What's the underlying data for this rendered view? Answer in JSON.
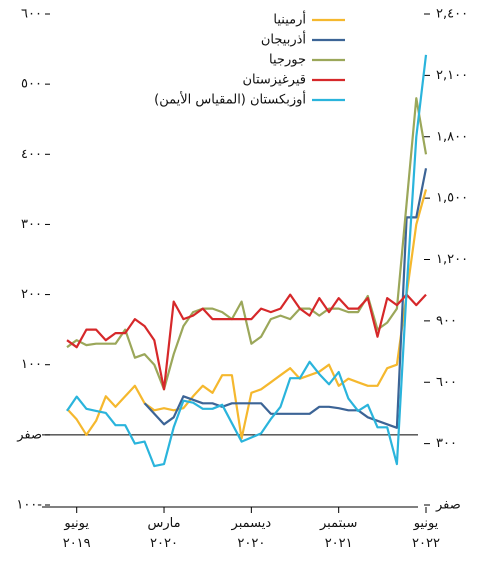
{
  "chart_data": {
    "type": "line",
    "categories": [
      null,
      "يونيو ٢٠١٩",
      null,
      null,
      null,
      null,
      null,
      null,
      null,
      null,
      "مارس ٢٠٢٠",
      null,
      null,
      null,
      null,
      null,
      null,
      null,
      null,
      "ديسمبر ٢٠٢٠",
      null,
      null,
      null,
      null,
      null,
      null,
      null,
      null,
      "سبتمبر ٢٠٢١",
      null,
      null,
      null,
      null,
      null,
      null,
      null,
      null,
      "يونيو ٢٠٢٢"
    ],
    "ylim": [
      -100,
      600
    ],
    "yticks": [
      {
        "value": -100,
        "label": "١٠٠-"
      },
      {
        "value": 0,
        "label": "صفر"
      },
      {
        "value": 100,
        "label": "١٠٠"
      },
      {
        "value": 200,
        "label": "٢٠٠"
      },
      {
        "value": 300,
        "label": "٣٠٠"
      },
      {
        "value": 400,
        "label": "٤٠٠"
      },
      {
        "value": 500,
        "label": "٥٠٠"
      },
      {
        "value": 600,
        "label": "٦٠٠"
      }
    ],
    "y2lim": [
      0,
      2400
    ],
    "y2ticks": [
      {
        "value": 0,
        "label": "صفر"
      },
      {
        "value": 300,
        "label": "٣٠٠"
      },
      {
        "value": 600,
        "label": "٦٠٠"
      },
      {
        "value": 900,
        "label": "٩٠٠"
      },
      {
        "value": 1200,
        "label": "١,٢٠٠"
      },
      {
        "value": 1500,
        "label": "١,٥٠٠"
      },
      {
        "value": 1800,
        "label": "١,٨٠٠"
      },
      {
        "value": 2100,
        "label": "٢,١٠٠"
      },
      {
        "value": 2400,
        "label": "٢,٤٠٠"
      }
    ],
    "series": [
      {
        "name": "أرمينيا",
        "color": "#f5b82e",
        "values": [
          37,
          22,
          0,
          20,
          55,
          40,
          55,
          70,
          45,
          35,
          38,
          35,
          38,
          55,
          70,
          60,
          85,
          85,
          -5,
          60,
          65,
          75,
          85,
          95,
          80,
          85,
          90,
          100,
          70,
          80,
          75,
          70,
          70,
          95,
          100,
          200,
          300,
          350
        ]
      },
      {
        "name": "أذربيجان",
        "color": "#3c6496",
        "values": [
          null,
          null,
          null,
          null,
          null,
          null,
          null,
          null,
          45,
          30,
          15,
          25,
          55,
          50,
          45,
          45,
          40,
          45,
          45,
          45,
          45,
          30,
          30,
          30,
          30,
          30,
          40,
          40,
          38,
          35,
          35,
          25,
          20,
          15,
          10,
          310,
          310,
          380
        ]
      },
      {
        "name": "جورجيا",
        "color": "#9ba75a",
        "values": [
          125,
          135,
          128,
          130,
          130,
          130,
          150,
          110,
          115,
          100,
          65,
          115,
          155,
          175,
          180,
          180,
          175,
          165,
          190,
          130,
          140,
          165,
          170,
          165,
          180,
          180,
          170,
          180,
          180,
          175,
          175,
          198,
          150,
          160,
          180,
          330,
          480,
          400
        ]
      },
      {
        "name": "قيرغيزستان",
        "color": "#d6282a",
        "values": [
          135,
          125,
          150,
          150,
          135,
          145,
          145,
          165,
          155,
          135,
          65,
          190,
          165,
          170,
          180,
          165,
          165,
          165,
          165,
          165,
          180,
          175,
          180,
          200,
          180,
          170,
          195,
          175,
          195,
          180,
          180,
          195,
          140,
          195,
          185,
          200,
          185,
          200
        ]
      },
      {
        "name": "أوزبكستان (المقياس الأيمن)",
        "color": "#2ab4dc",
        "axis": "y2",
        "values": [
          460,
          530,
          470,
          460,
          450,
          390,
          390,
          300,
          310,
          190,
          200,
          380,
          510,
          500,
          470,
          470,
          490,
          400,
          310,
          330,
          350,
          420,
          480,
          620,
          620,
          700,
          640,
          590,
          650,
          520,
          460,
          490,
          380,
          380,
          200,
          1050,
          1800,
          2200
        ]
      }
    ]
  }
}
